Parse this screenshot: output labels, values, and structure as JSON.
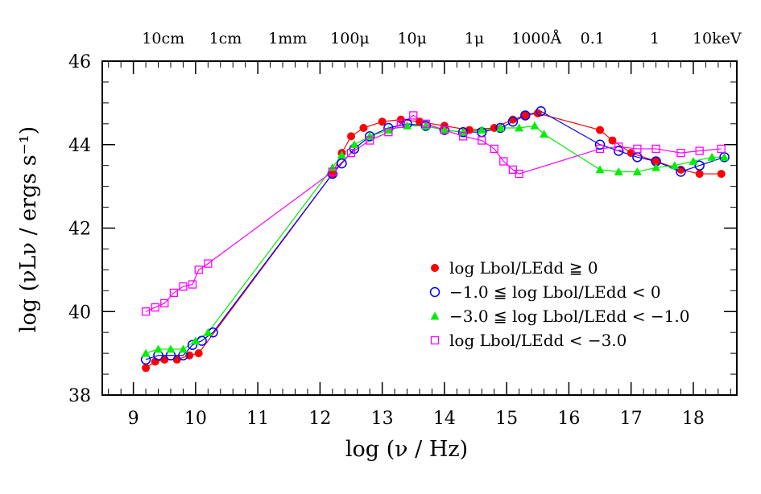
{
  "chart_data": {
    "type": "line",
    "xlabel": "log (ν / Hz)",
    "ylabel": "log (νLν / ergs s⁻¹)",
    "xlim": [
      8.5,
      18.7
    ],
    "ylim": [
      38,
      46
    ],
    "x_ticks": [
      9,
      10,
      11,
      12,
      13,
      14,
      15,
      16,
      17,
      18
    ],
    "y_ticks": [
      38,
      40,
      42,
      44,
      46
    ],
    "top_axis_labels": [
      {
        "label": "10cm",
        "x": 9.48
      },
      {
        "label": "1cm",
        "x": 10.48
      },
      {
        "label": "1mm",
        "x": 11.48
      },
      {
        "label": "100μ",
        "x": 12.48
      },
      {
        "label": "10μ",
        "x": 13.48
      },
      {
        "label": "1μ",
        "x": 14.48
      },
      {
        "label": "1000Å",
        "x": 15.48
      },
      {
        "label": "0.1",
        "x": 16.38
      },
      {
        "label": "1",
        "x": 17.38
      },
      {
        "label": "10keV",
        "x": 18.38
      }
    ],
    "legend_position": "right-middle",
    "series": [
      {
        "name": "log Lbol/LEdd ≧ 0",
        "color": "#ff0000",
        "marker": "filled-circle",
        "x": [
          9.2,
          9.35,
          9.5,
          9.7,
          9.9,
          10.05,
          12.2,
          12.35,
          12.5,
          12.7,
          13.0,
          13.3,
          13.6,
          14.0,
          14.4,
          14.8,
          15.1,
          15.3,
          15.5,
          16.5,
          16.7,
          17.0,
          17.4,
          17.8,
          18.1,
          18.45
        ],
        "y": [
          38.65,
          38.8,
          38.85,
          38.85,
          38.95,
          39.0,
          43.3,
          43.8,
          44.2,
          44.4,
          44.55,
          44.6,
          44.55,
          44.45,
          44.35,
          44.4,
          44.6,
          44.7,
          44.75,
          44.35,
          44.1,
          43.8,
          43.6,
          43.4,
          43.3,
          43.3
        ]
      },
      {
        "name": "−1.0 ≦ log Lbol/LEdd < 0",
        "color": "#0000ff",
        "marker": "open-circle",
        "x": [
          9.2,
          9.4,
          9.6,
          9.8,
          9.95,
          10.1,
          10.28,
          12.2,
          12.35,
          12.55,
          12.8,
          13.1,
          13.4,
          13.7,
          14.0,
          14.3,
          14.6,
          14.9,
          15.1,
          15.3,
          15.55,
          16.5,
          16.8,
          17.1,
          17.4,
          17.8,
          18.1,
          18.5
        ],
        "y": [
          38.85,
          38.95,
          38.95,
          38.95,
          39.2,
          39.3,
          39.5,
          43.3,
          43.55,
          43.9,
          44.2,
          44.4,
          44.5,
          44.45,
          44.35,
          44.3,
          44.3,
          44.4,
          44.55,
          44.7,
          44.8,
          44.0,
          43.85,
          43.7,
          43.6,
          43.35,
          43.5,
          43.7
        ]
      },
      {
        "name": "−3.0 ≦ log Lbol/LEdd < −1.0",
        "color": "#00ee00",
        "marker": "filled-triangle",
        "x": [
          9.2,
          9.4,
          9.6,
          9.8,
          10.0,
          10.2,
          12.2,
          12.35,
          12.55,
          12.8,
          13.1,
          13.4,
          13.7,
          14.0,
          14.3,
          14.6,
          14.9,
          15.2,
          15.45,
          15.6,
          16.5,
          16.8,
          17.1,
          17.4,
          17.7,
          18.0,
          18.3,
          18.5
        ],
        "y": [
          39.0,
          39.1,
          39.1,
          39.1,
          39.3,
          39.5,
          43.45,
          43.75,
          44.0,
          44.2,
          44.35,
          44.45,
          44.45,
          44.35,
          44.3,
          44.35,
          44.4,
          44.4,
          44.45,
          44.25,
          43.4,
          43.35,
          43.35,
          43.45,
          43.5,
          43.6,
          43.7,
          43.7
        ]
      },
      {
        "name": "log Lbol/LEdd < −3.0",
        "color": "#ff00ff",
        "marker": "open-square",
        "x": [
          9.2,
          9.35,
          9.5,
          9.65,
          9.8,
          9.95,
          10.05,
          10.2,
          12.2,
          12.5,
          12.8,
          13.1,
          13.3,
          13.5,
          13.7,
          14.0,
          14.3,
          14.6,
          14.8,
          14.95,
          15.1,
          15.2,
          16.5,
          16.8,
          17.1,
          17.4,
          17.8,
          18.1,
          18.45
        ],
        "y": [
          40.0,
          40.1,
          40.2,
          40.45,
          40.6,
          40.65,
          41.0,
          41.15,
          43.35,
          43.8,
          44.1,
          44.3,
          44.5,
          44.7,
          44.5,
          44.35,
          44.2,
          44.1,
          43.9,
          43.6,
          43.4,
          43.3,
          43.9,
          43.95,
          43.9,
          43.9,
          43.8,
          43.85,
          43.9
        ]
      }
    ]
  }
}
